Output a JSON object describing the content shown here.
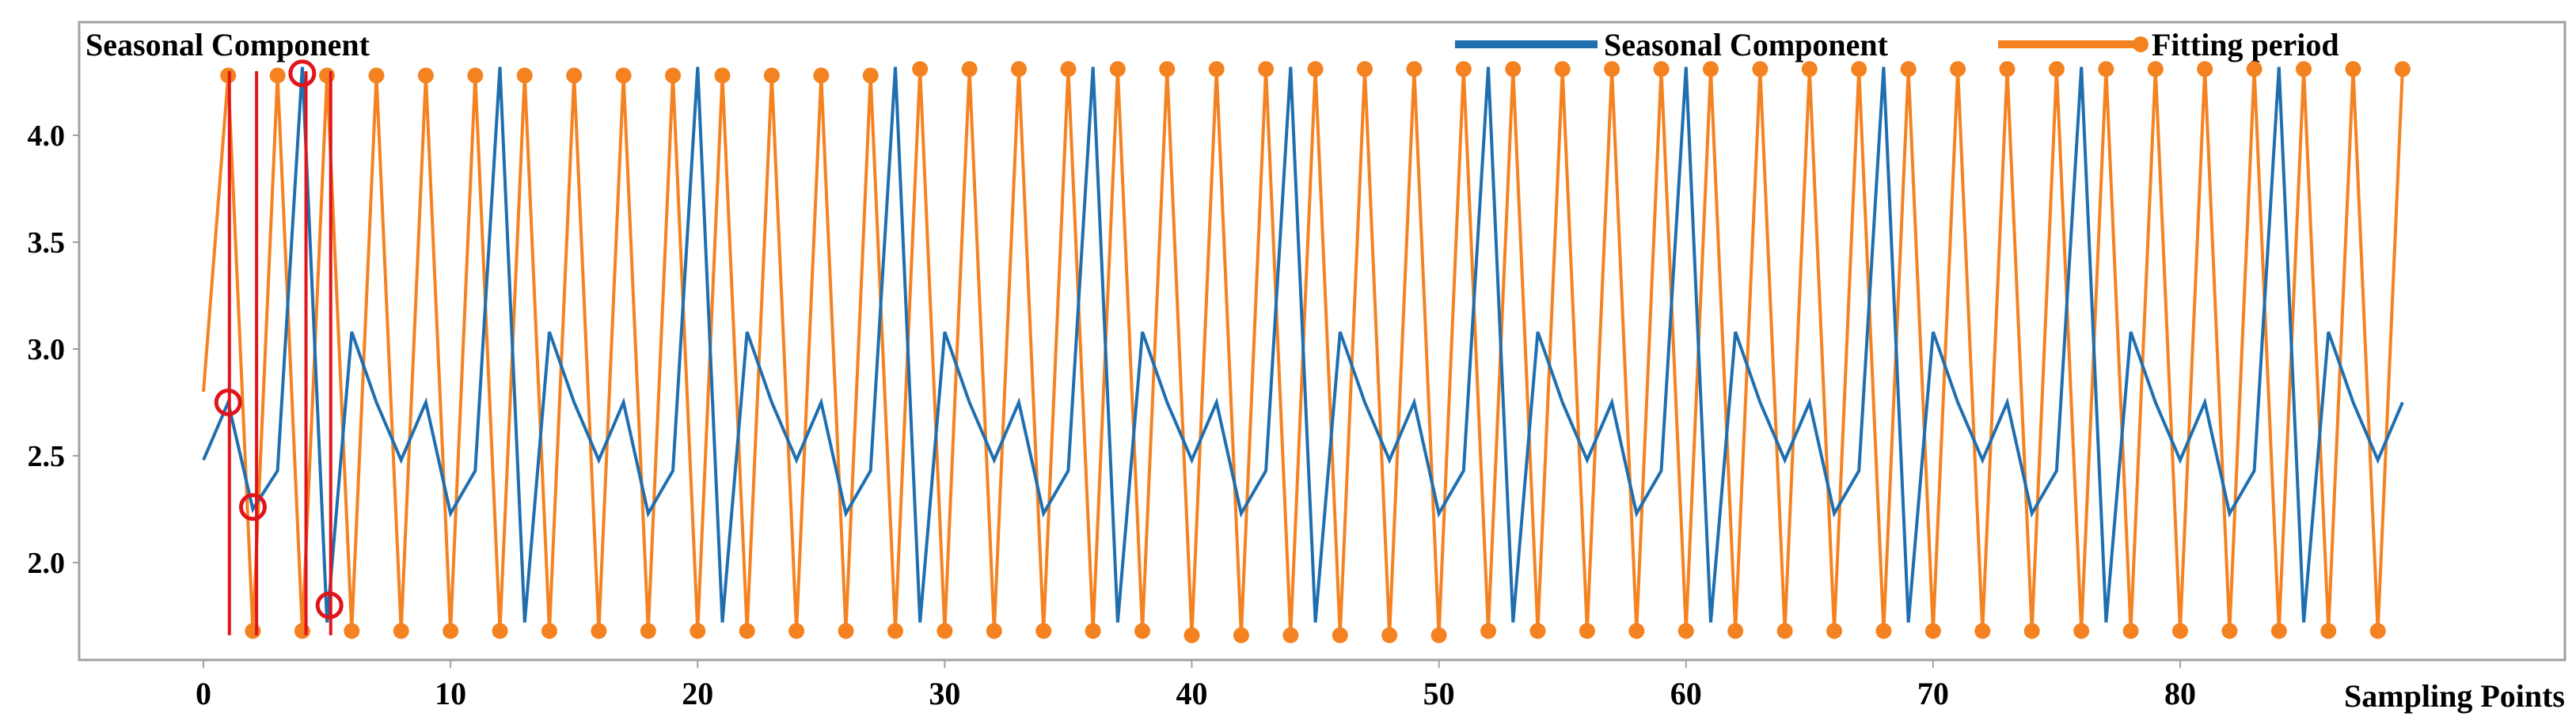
{
  "colors": {
    "seasonal": "#1f6fb0",
    "fitting": "#f58220",
    "marker_line": "#e0151b",
    "frame": "#a0a0a0"
  },
  "chart_data": {
    "type": "line",
    "title": "Seasonal Component",
    "xlabel": "Sampling Points",
    "ylabel": "",
    "xlim": [
      -2,
      92
    ],
    "ylim": [
      1.55,
      4.4
    ],
    "xticks": [
      0,
      10,
      20,
      30,
      40,
      50,
      60,
      70,
      80
    ],
    "xtick_labels": [
      "0",
      "10",
      "20",
      "30",
      "40",
      "50",
      "60",
      "70",
      "80"
    ],
    "yticks": [
      2.0,
      2.5,
      3.0,
      3.5,
      4.0
    ],
    "ytick_labels": [
      "2.0",
      "2.5",
      "3.0",
      "3.5",
      "4.0"
    ],
    "legend_position": "top-right",
    "series": [
      {
        "name": "Seasonal Component",
        "color": "#1f6fb0",
        "markers": false,
        "x": [
          0,
          1,
          2,
          3,
          4,
          5,
          6,
          7,
          8,
          9,
          10,
          11,
          12,
          13,
          14,
          15,
          16,
          17,
          18,
          19,
          20,
          21,
          22,
          23,
          24,
          25,
          26,
          27,
          28,
          29,
          30,
          31,
          32,
          33,
          34,
          35,
          36,
          37,
          38,
          39,
          40,
          41,
          42,
          43,
          44,
          45,
          46,
          47,
          48,
          49,
          50,
          51,
          52,
          53,
          54,
          55,
          56,
          57,
          58,
          59,
          60,
          61,
          62,
          63,
          64,
          65,
          66,
          67,
          68,
          69,
          70,
          71,
          72,
          73,
          74,
          75,
          76,
          77,
          78,
          79,
          80,
          81,
          82,
          83,
          84,
          85,
          86,
          87,
          88,
          89
        ],
        "y": [
          2.48,
          2.75,
          2.25,
          2.43,
          4.32,
          1.72,
          3.08,
          2.75,
          2.48,
          2.75,
          2.23,
          2.43,
          4.32,
          1.72,
          3.08,
          2.75,
          2.48,
          2.75,
          2.23,
          2.43,
          4.32,
          1.72,
          3.08,
          2.75,
          2.48,
          2.75,
          2.23,
          2.43,
          4.32,
          1.72,
          3.08,
          2.75,
          2.48,
          2.75,
          2.23,
          2.43,
          4.32,
          1.72,
          3.08,
          2.75,
          2.48,
          2.75,
          2.23,
          2.43,
          4.32,
          1.72,
          3.08,
          2.75,
          2.48,
          2.75,
          2.23,
          2.43,
          4.32,
          1.72,
          3.08,
          2.75,
          2.48,
          2.75,
          2.23,
          2.43,
          4.32,
          1.72,
          3.08,
          2.75,
          2.48,
          2.75,
          2.23,
          2.43,
          4.32,
          1.72,
          3.08,
          2.75,
          2.48,
          2.75,
          2.23,
          2.43,
          4.32,
          1.72,
          3.08,
          2.75,
          2.48,
          2.75,
          2.23,
          2.43,
          4.32,
          1.72,
          3.08,
          2.75,
          2.48,
          2.75
        ]
      },
      {
        "name": "Fitting period",
        "color": "#f58220",
        "markers": true,
        "x": [
          0,
          1,
          2,
          3,
          4,
          5,
          6,
          7,
          8,
          9,
          10,
          11,
          12,
          13,
          14,
          15,
          16,
          17,
          18,
          19,
          20,
          21,
          22,
          23,
          24,
          25,
          26,
          27,
          28,
          29,
          30,
          31,
          32,
          33,
          34,
          35,
          36,
          37,
          38,
          39,
          40,
          41,
          42,
          43,
          44,
          45,
          46,
          47,
          48,
          49,
          50,
          51,
          52,
          53,
          54,
          55,
          56,
          57,
          58,
          59,
          60,
          61,
          62,
          63,
          64,
          65,
          66,
          67,
          68,
          69,
          70,
          71,
          72,
          73,
          74,
          75,
          76,
          77,
          78,
          79,
          80,
          81,
          82,
          83,
          84,
          85,
          86,
          87,
          88,
          89
        ],
        "y": [
          2.8,
          4.28,
          1.68,
          4.28,
          1.68,
          4.28,
          1.68,
          4.28,
          1.68,
          4.28,
          1.68,
          4.28,
          1.68,
          4.28,
          1.68,
          4.28,
          1.68,
          4.28,
          1.68,
          4.28,
          1.68,
          4.28,
          1.68,
          4.28,
          1.68,
          4.28,
          1.68,
          4.28,
          1.68,
          4.31,
          1.68,
          4.31,
          1.68,
          4.31,
          1.68,
          4.31,
          1.68,
          4.31,
          1.68,
          4.31,
          1.66,
          4.31,
          1.66,
          4.31,
          1.66,
          4.31,
          1.66,
          4.31,
          1.66,
          4.31,
          1.66,
          4.31,
          1.68,
          4.31,
          1.68,
          4.31,
          1.68,
          4.31,
          1.68,
          4.31,
          1.68,
          4.31,
          1.68,
          4.31,
          1.68,
          4.31,
          1.68,
          4.31,
          1.68,
          4.31,
          1.68,
          4.31,
          1.68,
          4.31,
          1.68,
          4.31,
          1.68,
          4.31,
          1.68,
          4.31,
          1.68,
          4.31,
          1.68,
          4.31,
          1.68,
          4.31,
          1.68,
          4.31,
          1.68,
          4.31
        ],
        "marker_skip_x": [
          0
        ]
      }
    ],
    "annotations": {
      "vertical_lines_x": [
        1.05,
        2.15,
        4.15,
        5.15
      ],
      "vertical_lines_y_range": [
        1.66,
        4.3
      ],
      "circles": [
        {
          "x": 1.0,
          "y": 2.75
        },
        {
          "x": 2.0,
          "y": 2.26
        },
        {
          "x": 4.0,
          "y": 4.29
        },
        {
          "x": 5.1,
          "y": 1.8
        }
      ]
    }
  }
}
